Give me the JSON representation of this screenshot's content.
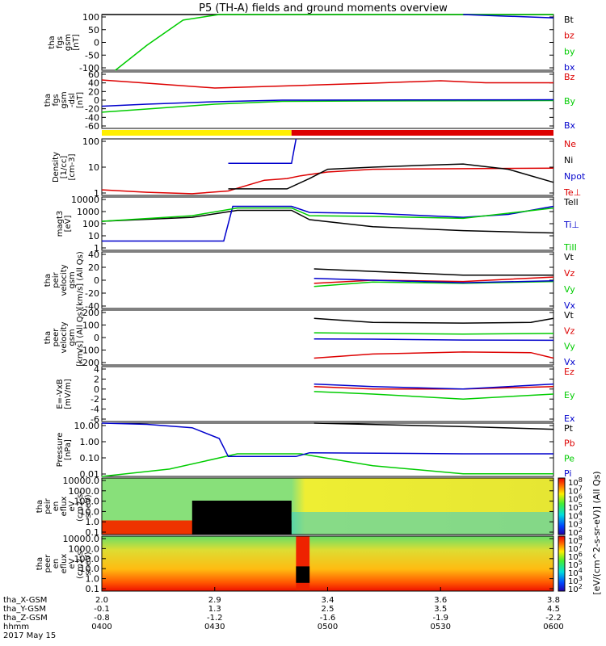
{
  "title": "P5 (TH-A) fields and ground moments overview",
  "date_label": "2017 May 15",
  "orbit_rows": [
    {
      "label": "tha_X-GSM",
      "values": [
        "2.0",
        "2.9",
        "3.4",
        "3.6",
        "3.8"
      ]
    },
    {
      "label": "tha_Y-GSM",
      "values": [
        "-0.1",
        "1.3",
        "2.5",
        "3.5",
        "4.5"
      ]
    },
    {
      "label": "tha_Z-GSM",
      "values": [
        "-0.8",
        "-1.2",
        "-1.6",
        "-1.9",
        "-2.2"
      ]
    },
    {
      "label": "hhmm",
      "values": [
        "0400",
        "0430",
        "0500",
        "0530",
        "0600"
      ]
    }
  ],
  "colors": {
    "black": "#000000",
    "red": "#dd0000",
    "green": "#00cc00",
    "blue": "#0000cc",
    "yellow": "#ffee00",
    "barred": "#dd0000"
  },
  "mode_bar": {
    "segments": [
      {
        "from": 0.0,
        "to": 0.42,
        "color": "yellow"
      },
      {
        "from": 0.42,
        "to": 1.0,
        "color": "barred"
      }
    ]
  },
  "colorbar_label": "[eV/(cm^2-s-sr-eV)] (All Qs)",
  "chart_data": [
    {
      "type": "line",
      "panel": "fgs_gsm_a",
      "ylabel": [
        "tha",
        "fgs",
        "gsm",
        "[nT]"
      ],
      "ticks": [
        "100",
        "50",
        "0",
        "-50",
        "-100"
      ],
      "ylim": [
        -100,
        100
      ],
      "series": [
        {
          "name": "Bt",
          "color": "black",
          "values": [
            [
              0,
              100
            ],
            [
              1,
              100
            ]
          ]
        },
        {
          "name": "bz",
          "color": "red",
          "values": []
        },
        {
          "name": "by",
          "color": "green",
          "values": [
            [
              0.03,
              -100
            ],
            [
              0.1,
              -10
            ],
            [
              0.18,
              80
            ],
            [
              0.26,
              100
            ],
            [
              1,
              100
            ]
          ]
        },
        {
          "name": "bx",
          "color": "blue",
          "values": [
            [
              0.8,
              100
            ],
            [
              0.88,
              95
            ],
            [
              1,
              88
            ]
          ]
        }
      ],
      "legend": [
        "Bt",
        "bz",
        "by",
        "bx"
      ],
      "legend_colors": [
        "black",
        "red",
        "green",
        "blue"
      ]
    },
    {
      "type": "line",
      "panel": "fgs_gsm_b",
      "ylabel": [
        "tha",
        "fgs",
        "gsm",
        "-dsl",
        "[nT]"
      ],
      "ticks": [
        "60",
        "40",
        "20",
        "0",
        "-20",
        "-40",
        "-60"
      ],
      "ylim": [
        -70,
        70
      ],
      "series": [
        {
          "name": "Bz",
          "color": "red",
          "values": [
            [
              0,
              50
            ],
            [
              0.1,
              42
            ],
            [
              0.25,
              30
            ],
            [
              0.4,
              35
            ],
            [
              0.6,
              42
            ],
            [
              0.75,
              48
            ],
            [
              0.85,
              43
            ],
            [
              1,
              43
            ]
          ]
        },
        {
          "name": "By",
          "color": "green",
          "values": [
            [
              0,
              -30
            ],
            [
              0.1,
              -22
            ],
            [
              0.25,
              -10
            ],
            [
              0.4,
              -3
            ],
            [
              0.6,
              -2
            ],
            [
              1,
              -1
            ]
          ]
        },
        {
          "name": "Bx",
          "color": "blue",
          "values": [
            [
              0,
              -15
            ],
            [
              0.1,
              -10
            ],
            [
              0.25,
              -4
            ],
            [
              0.4,
              0
            ],
            [
              1,
              1
            ]
          ]
        }
      ],
      "legend": [
        "Bz",
        "By",
        "Bx"
      ],
      "legend_colors": [
        "red",
        "green",
        "blue"
      ]
    },
    {
      "type": "line",
      "panel": "density",
      "log": true,
      "ylabel": [
        "Density",
        "[1/cc]",
        "[cm-3]"
      ],
      "ticks": [
        "100",
        "10",
        "1"
      ],
      "ylim": [
        0.5,
        200
      ],
      "series": [
        {
          "name": "Ne",
          "color": "red",
          "values": [
            [
              0,
              0.9
            ],
            [
              0.1,
              0.7
            ],
            [
              0.2,
              0.6
            ],
            [
              0.28,
              0.8
            ],
            [
              0.36,
              2.5
            ],
            [
              0.41,
              3.0
            ],
            [
              0.44,
              4
            ],
            [
              0.5,
              6
            ],
            [
              0.6,
              8
            ],
            [
              0.8,
              8.5
            ],
            [
              1,
              9
            ]
          ]
        },
        {
          "name": "Ni",
          "color": "black",
          "values": [
            [
              0.28,
              1
            ],
            [
              0.41,
              1
            ],
            [
              0.46,
              3
            ],
            [
              0.5,
              8
            ],
            [
              0.6,
              10
            ],
            [
              0.7,
              12
            ],
            [
              0.8,
              14
            ],
            [
              0.9,
              8
            ],
            [
              1,
              2
            ]
          ]
        },
        {
          "name": "Npot",
          "color": "blue",
          "values": [
            [
              0.28,
              15
            ],
            [
              0.42,
              15
            ],
            [
              0.43,
              200
            ]
          ]
        },
        {
          "name": "Te⊥",
          "color": "red",
          "values": []
        }
      ],
      "legend": [
        "Ne",
        "Ni",
        "Npot",
        "Te⊥"
      ],
      "legend_colors": [
        "red",
        "black",
        "blue",
        "red"
      ]
    },
    {
      "type": "line",
      "panel": "temperature",
      "log": true,
      "ylabel": [
        "magt3",
        "[eV]"
      ],
      "ticks": [
        "10000",
        "1000",
        "100",
        "10",
        "1"
      ],
      "ylim": [
        1,
        10000
      ],
      "series": [
        {
          "name": "TeII",
          "color": "black",
          "values": [
            [
              0,
              150
            ],
            [
              0.2,
              300
            ],
            [
              0.3,
              1000
            ],
            [
              0.42,
              1000
            ],
            [
              0.46,
              200
            ],
            [
              0.6,
              60
            ],
            [
              0.8,
              30
            ],
            [
              1,
              20
            ]
          ]
        },
        {
          "name": "Ti⊥",
          "color": "blue",
          "values": [
            [
              0,
              5
            ],
            [
              0.27,
              5
            ],
            [
              0.29,
              2000
            ],
            [
              0.42,
              2000
            ],
            [
              0.46,
              700
            ],
            [
              0.6,
              600
            ],
            [
              0.8,
              300
            ],
            [
              0.9,
              500
            ],
            [
              1,
              2000
            ]
          ]
        },
        {
          "name": "TiII",
          "color": "green",
          "values": [
            [
              0,
              150
            ],
            [
              0.2,
              400
            ],
            [
              0.3,
              1500
            ],
            [
              0.42,
              1500
            ],
            [
              0.46,
              400
            ],
            [
              0.6,
              350
            ],
            [
              0.8,
              250
            ],
            [
              1,
              1500
            ]
          ]
        }
      ],
      "legend": [
        "Tell",
        "Ti⊥",
        "TiII"
      ],
      "legend_colors": [
        "black",
        "blue",
        "green"
      ]
    },
    {
      "type": "line",
      "panel": "peir_velocity",
      "ylabel": [
        "tha",
        "peir",
        "velocity",
        "gsm",
        "[km/s] (All Qs)"
      ],
      "ticks": [
        "40",
        "20",
        "0",
        "-20",
        "-40"
      ],
      "ylim": [
        -45,
        45
      ],
      "series": [
        {
          "name": "Vt",
          "color": "black",
          "values": [
            [
              0.47,
              18
            ],
            [
              0.6,
              14
            ],
            [
              0.8,
              8
            ],
            [
              1,
              8
            ]
          ]
        },
        {
          "name": "Vz",
          "color": "red",
          "values": [
            [
              0.47,
              -5
            ],
            [
              0.6,
              0
            ],
            [
              0.8,
              -2
            ],
            [
              1,
              5
            ]
          ]
        },
        {
          "name": "Vy",
          "color": "green",
          "values": [
            [
              0.47,
              -10
            ],
            [
              0.6,
              -3
            ],
            [
              0.8,
              -5
            ],
            [
              1,
              -2
            ]
          ]
        },
        {
          "name": "Vx",
          "color": "blue",
          "values": [
            [
              0.47,
              3
            ],
            [
              0.6,
              0
            ],
            [
              0.8,
              -4
            ],
            [
              1,
              -1
            ]
          ]
        }
      ],
      "legend": [
        "Vt",
        "Vz",
        "Vy",
        "Vx"
      ],
      "legend_colors": [
        "black",
        "red",
        "green",
        "blue"
      ]
    },
    {
      "type": "line",
      "panel": "peer_velocity",
      "ylabel": [
        "tha",
        "peer",
        "velocity",
        "gsm",
        "[km/s] (All Qs)"
      ],
      "ticks": [
        "200",
        "100",
        "0",
        "-100",
        "-200"
      ],
      "ylim": [
        -200,
        200
      ],
      "series": [
        {
          "name": "Vt",
          "color": "black",
          "values": [
            [
              0.47,
              140
            ],
            [
              0.6,
              110
            ],
            [
              0.8,
              105
            ],
            [
              0.95,
              110
            ],
            [
              1,
              140
            ]
          ]
        },
        {
          "name": "Vz",
          "color": "red",
          "values": [
            [
              0.47,
              -150
            ],
            [
              0.6,
              -120
            ],
            [
              0.8,
              -105
            ],
            [
              0.95,
              -110
            ],
            [
              1,
              -150
            ]
          ]
        },
        {
          "name": "Vy",
          "color": "green",
          "values": [
            [
              0.47,
              35
            ],
            [
              0.6,
              30
            ],
            [
              0.8,
              25
            ],
            [
              1,
              30
            ]
          ]
        },
        {
          "name": "Vx",
          "color": "blue",
          "values": [
            [
              0.47,
              -10
            ],
            [
              0.6,
              -12
            ],
            [
              0.8,
              -18
            ],
            [
              1,
              -20
            ]
          ]
        }
      ],
      "legend": [
        "Vt",
        "Vz",
        "Vy",
        "Vx"
      ],
      "legend_colors": [
        "black",
        "red",
        "green",
        "blue"
      ]
    },
    {
      "type": "line",
      "panel": "efield",
      "ylabel": [
        "E=-VxB",
        "[mV/m]"
      ],
      "ticks": [
        "4",
        "2",
        "0",
        "-2",
        "-4",
        "-6"
      ],
      "ylim": [
        -6.5,
        4.5
      ],
      "series": [
        {
          "name": "Ez",
          "color": "red",
          "values": [
            [
              0.47,
              0.5
            ],
            [
              0.6,
              0
            ],
            [
              0.8,
              0
            ],
            [
              1,
              0.5
            ]
          ]
        },
        {
          "name": "Ey",
          "color": "green",
          "values": [
            [
              0.47,
              -0.5
            ],
            [
              0.6,
              -1
            ],
            [
              0.8,
              -2
            ],
            [
              1,
              -1
            ]
          ]
        },
        {
          "name": "Ex",
          "color": "blue",
          "values": [
            [
              0.47,
              1
            ],
            [
              0.6,
              0.5
            ],
            [
              0.8,
              0
            ],
            [
              1,
              1
            ]
          ]
        }
      ],
      "legend": [
        "Ez",
        "Ey",
        "Ex"
      ],
      "legend_colors": [
        "red",
        "green",
        "blue"
      ]
    },
    {
      "type": "line",
      "panel": "pressure",
      "log": true,
      "ylabel": [
        "Pressure",
        "[nPa]"
      ],
      "ticks": [
        "10.00",
        "1.00",
        "0.10",
        "0.01"
      ],
      "ylim": [
        0.01,
        30
      ],
      "series": [
        {
          "name": "Pt",
          "color": "black",
          "values": [
            [
              0.47,
              30
            ],
            [
              0.8,
              18
            ],
            [
              1,
              12
            ]
          ]
        },
        {
          "name": "Pb",
          "color": "red",
          "values": []
        },
        {
          "name": "Pe",
          "color": "green",
          "values": [
            [
              0,
              0.01
            ],
            [
              0.15,
              0.03
            ],
            [
              0.3,
              0.3
            ],
            [
              0.44,
              0.3
            ],
            [
              0.6,
              0.05
            ],
            [
              0.8,
              0.015
            ],
            [
              1,
              0.015
            ]
          ]
        },
        {
          "name": "Pi",
          "color": "blue",
          "values": [
            [
              0,
              30
            ],
            [
              0.1,
              25
            ],
            [
              0.2,
              15
            ],
            [
              0.26,
              3
            ],
            [
              0.28,
              0.2
            ],
            [
              0.43,
              0.2
            ],
            [
              0.46,
              0.35
            ],
            [
              0.8,
              0.3
            ],
            [
              1,
              0.3
            ]
          ]
        }
      ],
      "legend": [
        "Pt",
        "Pb",
        "Pe",
        "Pi"
      ],
      "legend_colors": [
        "black",
        "red",
        "green",
        "blue"
      ]
    },
    {
      "type": "heatmap",
      "panel": "peir_spectrogram",
      "ylabel": [
        "tha",
        "peir",
        "en",
        "eflux",
        "eV",
        "(cm2-s-",
        "sr-eV)"
      ],
      "ticks": [
        "10000.0",
        "1000.0",
        "100.0",
        "10.0",
        "1.0",
        "0.1"
      ],
      "colorbar_ticks": [
        "10^8",
        "10^7",
        "10^6",
        "10^5",
        "10^4",
        "10^3",
        "10^2"
      ]
    },
    {
      "type": "heatmap",
      "panel": "peer_spectrogram",
      "ylabel": [
        "tha",
        "peer",
        "en",
        "eflux",
        "eV",
        "(cm2-s-",
        "sr-eV)"
      ],
      "ticks": [
        "10000.0",
        "1000.0",
        "100.0",
        "10.0",
        "1.0",
        "0.1"
      ],
      "colorbar_ticks": [
        "10^8",
        "10^7",
        "10^6",
        "10^5",
        "10^4",
        "10^3",
        "10^2"
      ]
    }
  ]
}
